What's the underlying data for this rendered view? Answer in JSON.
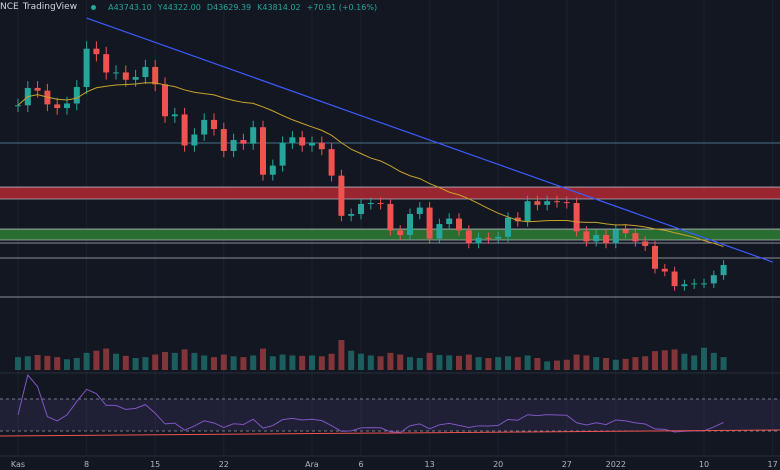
{
  "header": {
    "symbol": "NCE",
    "source": "TradingView",
    "open": "A43743.10",
    "high": "Y44322.00",
    "low": "D43629.39",
    "close": "K43814.02",
    "change": "+70.91 (+0.16%)"
  },
  "colors": {
    "background": "#131722",
    "up": "#26a69a",
    "down": "#ef5350",
    "trendline": "#3d5afe",
    "ma": "#c9a32a",
    "rsi": "#7e57c2",
    "resistance_zone": "#b22833",
    "support_zone": "#2e7d32"
  },
  "chart_data": {
    "type": "candlestick",
    "x_ticks": [
      "Kas",
      "8",
      "15",
      "22",
      "Ara",
      "6",
      "13",
      "20",
      "27",
      "2022",
      "10",
      "17"
    ],
    "dates_start": "2021-11-01",
    "close": [
      61300,
      63200,
      62900,
      61400,
      61000,
      61500,
      63300,
      67500,
      66900,
      64900,
      64900,
      64100,
      64400,
      65500,
      63600,
      60100,
      60300,
      56900,
      58100,
      59700,
      58700,
      56300,
      57500,
      57100,
      58900,
      53700,
      54700,
      57200,
      57800,
      56900,
      57200,
      56500,
      53600,
      49200,
      49400,
      50500,
      50600,
      50500,
      47600,
      47100,
      49400,
      50100,
      46700,
      48300,
      48900,
      47600,
      46200,
      46800,
      46700,
      46900,
      49000,
      48600,
      50800,
      50400,
      50800,
      50700,
      50600,
      47500,
      46400,
      47100,
      46200,
      47700,
      47300,
      46400,
      45900,
      43400,
      43100,
      41500,
      41700,
      41800,
      41800,
      42700,
      43814
    ],
    "volume": [
      30,
      32,
      35,
      33,
      30,
      25,
      28,
      40,
      45,
      50,
      38,
      33,
      28,
      30,
      36,
      42,
      40,
      48,
      40,
      34,
      30,
      36,
      32,
      30,
      34,
      50,
      32,
      36,
      34,
      33,
      34,
      32,
      38,
      70,
      45,
      38,
      34,
      32,
      40,
      36,
      30,
      28,
      40,
      35,
      34,
      33,
      36,
      30,
      28,
      30,
      32,
      30,
      34,
      28,
      20,
      22,
      24,
      36,
      34,
      30,
      28,
      24,
      26,
      30,
      32,
      44,
      46,
      48,
      38,
      34,
      52,
      40,
      30
    ],
    "levels": [
      57170,
      52350,
      51040,
      47750,
      46550,
      46220,
      44580,
      40310
    ],
    "resistance_zone": [
      51040,
      52350
    ],
    "support_zone": [
      46550,
      47750
    ],
    "trendline": [
      {
        "date": "2021-11-08",
        "price": 70860
      },
      {
        "date": "2022-01-17",
        "price": 44140
      }
    ],
    "rsi_levels": [
      30,
      70
    ],
    "y_range": [
      38000,
      72000
    ]
  }
}
